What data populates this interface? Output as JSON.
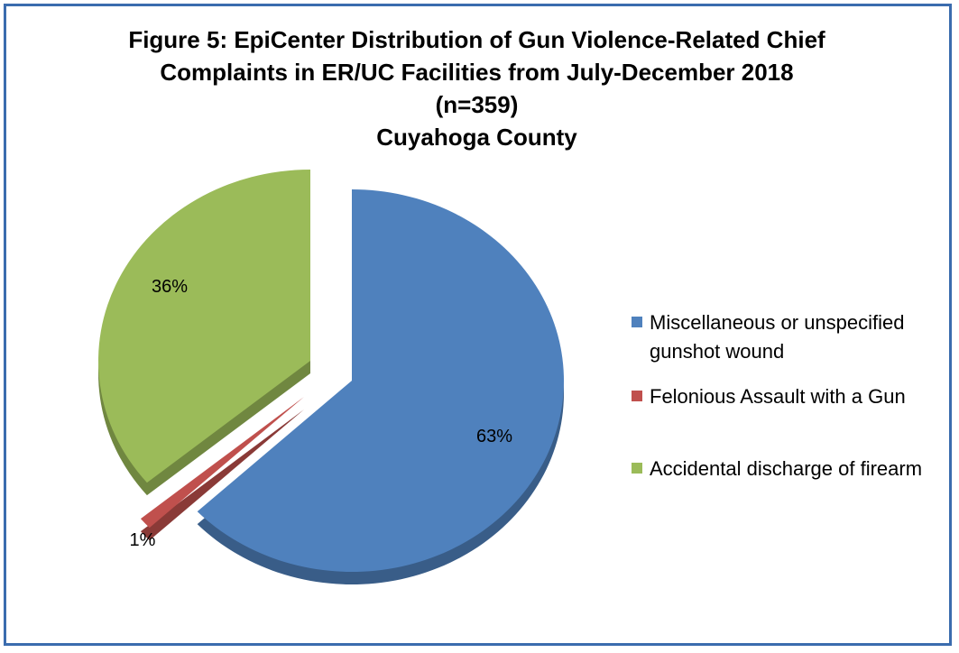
{
  "chart_data": {
    "type": "pie",
    "title_lines": [
      "Figure 5:  EpiCenter Distribution of Gun Violence-Related Chief",
      "Complaints in ER/UC Facilities from July-December 2018",
      "(n=359)",
      "Cuyahoga County"
    ],
    "slices": [
      {
        "name": "Miscellaneous or unspecified gunshot wound",
        "value": 63,
        "label": "63%",
        "color": "#4f81bd"
      },
      {
        "name": "Felonious Assault with a Gun",
        "value": 1,
        "label": "1%",
        "color": "#c0504d"
      },
      {
        "name": "Accidental discharge of firearm",
        "value": 36,
        "label": "36%",
        "color": "#9bbb59"
      }
    ],
    "legend_position": "right",
    "style": "3d-exploded"
  },
  "colors": {
    "border": "#3b6cae"
  }
}
